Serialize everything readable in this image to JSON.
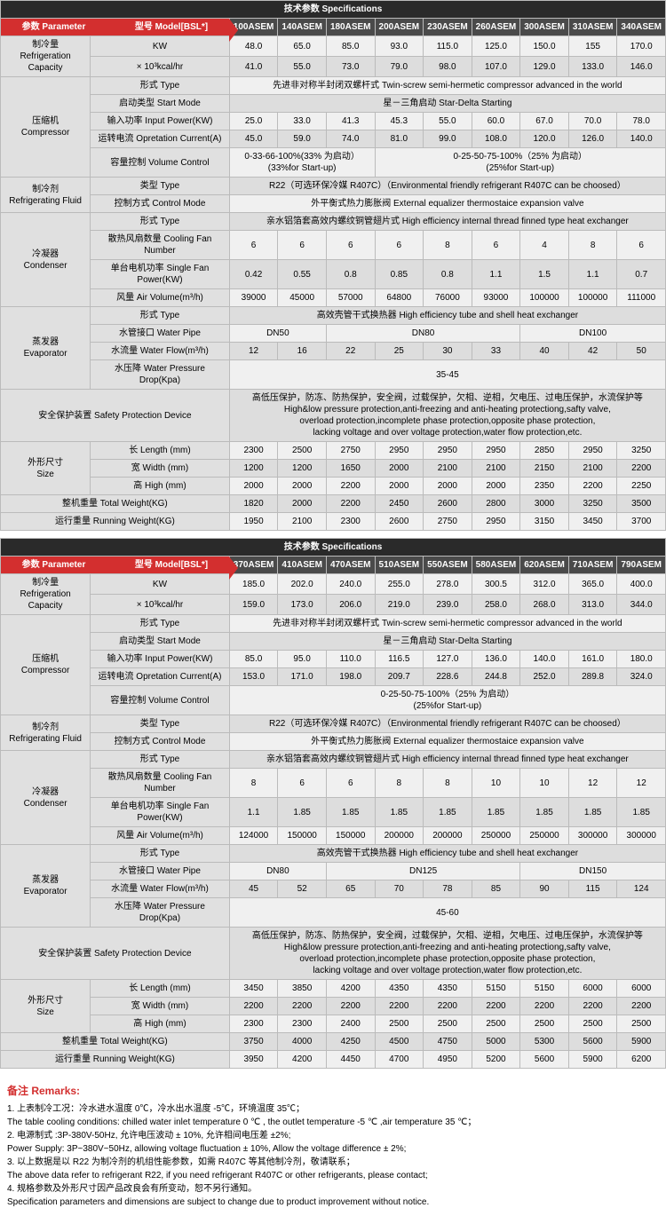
{
  "table1": {
    "title": "技术参数 Specifications",
    "paramLabel": "参数 Parameter",
    "modelLabel": "型号 Model[BSL*]",
    "models": [
      "100ASEM",
      "140ASEM",
      "180ASEM",
      "200ASEM",
      "230ASEM",
      "260ASEM",
      "300ASEM",
      "310ASEM",
      "340ASEM"
    ],
    "refrigCap": {
      "label": "制冷量\nRefrigeration Capacity",
      "kw": "KW",
      "kwv": [
        "48.0",
        "65.0",
        "85.0",
        "93.0",
        "115.0",
        "125.0",
        "150.0",
        "155",
        "170.0"
      ],
      "kcal": "× 10³kcal/hr",
      "kcalv": [
        "41.0",
        "55.0",
        "73.0",
        "79.0",
        "98.0",
        "107.0",
        "129.0",
        "133.0",
        "146.0"
      ]
    },
    "compressor": {
      "label": "压缩机\nCompressor",
      "typeL": "形式 Type",
      "typeV": "先进非对称半封闭双螺杆式 Twin-screw semi-hermetic compressor advanced in the world",
      "startL": "启动类型 Start Mode",
      "startV": "星－三角启动 Star-Delta Starting",
      "inputL": "输入功率 Input Power(KW)",
      "inputV": [
        "25.0",
        "33.0",
        "41.3",
        "45.3",
        "55.0",
        "60.0",
        "67.0",
        "70.0",
        "78.0"
      ],
      "currL": "运转电流 Opretation Current(A)",
      "currV": [
        "45.0",
        "59.0",
        "74.0",
        "81.0",
        "99.0",
        "108.0",
        "120.0",
        "126.0",
        "140.0"
      ],
      "volL": "容量控制 Volume Control",
      "vol1": "0-33-66-100%(33% 为启动）\n(33%for Start-up)",
      "vol2": "0-25-50-75-100%（25% 为启动）\n(25%for Start-up)"
    },
    "refrigFluid": {
      "label": "制冷剂\nRefrigerating Fluid",
      "typeL": "类型 Type",
      "typeV": "R22（可选环保冷媒 R407C）（Environmental friendly refrigerant R407C can be choosed）",
      "ctrlL": "控制方式 Control Mode",
      "ctrlV": "外平衡式热力膨胀阀 External equalizer thermostaice expansion valve"
    },
    "condenser": {
      "label": "冷凝器\nCondenser",
      "typeL": "形式 Type",
      "typeV": "亲水铝箔套高效内螺纹铜管翅片式 High efficiency internal thread finned type heat exchanger",
      "fanNumL": "散热风扇数量 Cooling Fan Number",
      "fanNumV": [
        "6",
        "6",
        "6",
        "6",
        "8",
        "6",
        "4",
        "8",
        "6"
      ],
      "fanPwrL": "单台电机功率 Single Fan Power(KW)",
      "fanPwrV": [
        "0.42",
        "0.55",
        "0.8",
        "0.85",
        "0.8",
        "1.1",
        "1.5",
        "1.1",
        "0.7"
      ],
      "airL": "风量 Air Volume(m³/h)",
      "airV": [
        "39000",
        "45000",
        "57000",
        "64800",
        "76000",
        "93000",
        "100000",
        "100000",
        "111000"
      ]
    },
    "evaporator": {
      "label": "蒸发器\nEvaporator",
      "typeL": "形式 Type",
      "typeV": "高效壳管干式换热器 High efficiency tube and shell heat exchanger",
      "pipeL": "水管接口 Water Pipe",
      "pipe1": "DN50",
      "pipe2": "DN80",
      "pipe3": "DN100",
      "flowL": "水流量 Water Flow(m³/h)",
      "flowV": [
        "12",
        "16",
        "22",
        "25",
        "30",
        "33",
        "40",
        "42",
        "50"
      ],
      "dropL": "水压降 Water Pressure Drop(Kpa)",
      "dropV": "35-45"
    },
    "safety": {
      "label": "安全保护装置 Safety Protection Device",
      "value": "高低压保护，防冻、防热保护，安全阀，过载保护，欠相、逆相，欠电压、过电压保护，水流保护等\nHigh&low pressure protection,anti-freezing and anti-heating protectiong,safty valve,\noverload protection,incomplete phase protection,opposite phase protection,\nlacking voltage and over voltage protection,water flow protection,etc."
    },
    "size": {
      "label": "外形尺寸\nSize",
      "lenL": "长 Length (mm)",
      "lenV": [
        "2300",
        "2500",
        "2750",
        "2950",
        "2950",
        "2950",
        "2850",
        "2950",
        "3250"
      ],
      "widL": "宽 Width (mm)",
      "widV": [
        "1200",
        "1200",
        "1650",
        "2000",
        "2100",
        "2100",
        "2150",
        "2100",
        "2200"
      ],
      "hiL": "高 High (mm)",
      "hiV": [
        "2000",
        "2000",
        "2200",
        "2000",
        "2000",
        "2000",
        "2350",
        "2200",
        "2250"
      ]
    },
    "totWt": {
      "label": "整机重量 Total Weight(KG)",
      "v": [
        "1820",
        "2000",
        "2200",
        "2450",
        "2600",
        "2800",
        "3000",
        "3250",
        "3500"
      ]
    },
    "runWt": {
      "label": "运行重量 Running Weight(KG)",
      "v": [
        "1950",
        "2100",
        "2300",
        "2600",
        "2750",
        "2950",
        "3150",
        "3450",
        "3700"
      ]
    }
  },
  "table2": {
    "title": "技术参数 Specifications",
    "paramLabel": "参数 Parameter",
    "modelLabel": "型号 Model[BSL*]",
    "models": [
      "370ASEM",
      "410ASEM",
      "470ASEM",
      "510ASEM",
      "550ASEM",
      "580ASEM",
      "620ASEM",
      "710ASEM",
      "790ASEM"
    ],
    "refrigCap": {
      "label": "制冷量\nRefrigeration Capacity",
      "kw": "KW",
      "kwv": [
        "185.0",
        "202.0",
        "240.0",
        "255.0",
        "278.0",
        "300.5",
        "312.0",
        "365.0",
        "400.0"
      ],
      "kcal": "× 10³kcal/hr",
      "kcalv": [
        "159.0",
        "173.0",
        "206.0",
        "219.0",
        "239.0",
        "258.0",
        "268.0",
        "313.0",
        "344.0"
      ]
    },
    "compressor": {
      "label": "压缩机\nCompressor",
      "typeL": "形式 Type",
      "typeV": "先进非对称半封闭双螺杆式 Twin-screw semi-hermetic compressor advanced in the world",
      "startL": "启动类型 Start Mode",
      "startV": "星－三角启动 Star-Delta Starting",
      "inputL": "输入功率 Input Power(KW)",
      "inputV": [
        "85.0",
        "95.0",
        "110.0",
        "116.5",
        "127.0",
        "136.0",
        "140.0",
        "161.0",
        "180.0"
      ],
      "currL": "运转电流 Opretation Current(A)",
      "currV": [
        "153.0",
        "171.0",
        "198.0",
        "209.7",
        "228.6",
        "244.8",
        "252.0",
        "289.8",
        "324.0"
      ],
      "volL": "容量控制 Volume Control",
      "volV": "0-25-50-75-100%（25% 为启动）\n(25%for Start-up)"
    },
    "refrigFluid": {
      "label": "制冷剂\nRefrigerating Fluid",
      "typeL": "类型 Type",
      "typeV": "R22（可选环保冷媒 R407C）（Environmental friendly refrigerant R407C can be choosed）",
      "ctrlL": "控制方式 Control Mode",
      "ctrlV": "外平衡式热力膨胀阀 External equalizer thermostaice expansion valve"
    },
    "condenser": {
      "label": "冷凝器\nCondenser",
      "typeL": "形式 Type",
      "typeV": "亲水铝箔套高效内螺纹铜管翅片式 High efficiency internal thread finned type heat exchanger",
      "fanNumL": "散热风扇数量 Cooling Fan Number",
      "fanNumV": [
        "8",
        "6",
        "6",
        "8",
        "8",
        "10",
        "10",
        "12",
        "12"
      ],
      "fanPwrL": "单台电机功率 Single Fan Power(KW)",
      "fanPwrV": [
        "1.1",
        "1.85",
        "1.85",
        "1.85",
        "1.85",
        "1.85",
        "1.85",
        "1.85",
        "1.85"
      ],
      "airL": "风量 Air Volume(m³/h)",
      "airV": [
        "124000",
        "150000",
        "150000",
        "200000",
        "200000",
        "250000",
        "250000",
        "300000",
        "300000"
      ]
    },
    "evaporator": {
      "label": "蒸发器\nEvaporator",
      "typeL": "形式 Type",
      "typeV": "高效壳管干式换热器 High efficiency tube and shell heat exchanger",
      "pipeL": "水管接口 Water Pipe",
      "pipe1": "DN80",
      "pipe2": "DN125",
      "pipe3": "DN150",
      "flowL": "水流量 Water Flow(m³/h)",
      "flowV": [
        "45",
        "52",
        "65",
        "70",
        "78",
        "85",
        "90",
        "115",
        "124"
      ],
      "dropL": "水压降 Water Pressure Drop(Kpa)",
      "dropV": "45-60"
    },
    "safety": {
      "label": "安全保护装置 Safety Protection Device",
      "value": "高低压保护，防冻、防热保护，安全阀，过载保护，欠相、逆相，欠电压、过电压保护，水流保护等\nHigh&low pressure protection,anti-freezing and anti-heating protectiong,safty valve,\noverload protection,incomplete phase protection,opposite phase protection,\nlacking voltage and over voltage protection,water flow protection,etc."
    },
    "size": {
      "label": "外形尺寸\nSize",
      "lenL": "长 Length (mm)",
      "lenV": [
        "3450",
        "3850",
        "4200",
        "4350",
        "4350",
        "5150",
        "5150",
        "6000",
        "6000"
      ],
      "widL": "宽 Width (mm)",
      "widV": [
        "2200",
        "2200",
        "2200",
        "2200",
        "2200",
        "2200",
        "2200",
        "2200",
        "2200"
      ],
      "hiL": "高 High (mm)",
      "hiV": [
        "2300",
        "2300",
        "2400",
        "2500",
        "2500",
        "2500",
        "2500",
        "2500",
        "2500"
      ]
    },
    "totWt": {
      "label": "整机重量 Total Weight(KG)",
      "v": [
        "3750",
        "4000",
        "4250",
        "4500",
        "4750",
        "5000",
        "5300",
        "5600",
        "5900"
      ]
    },
    "runWt": {
      "label": "运行重量 Running Weight(KG)",
      "v": [
        "3950",
        "4200",
        "4450",
        "4700",
        "4950",
        "5200",
        "5600",
        "5900",
        "6200"
      ]
    }
  },
  "remarks": {
    "title": "备注 Remarks:",
    "lines": [
      "1. 上表制冷工况：冷水进水温度 0℃，冷水出水温度 -5℃，环境温度 35℃；",
      "The table cooling conditions: chilled water inlet temperature 0 ℃ , the outlet temperature -5 ℃ ,air temperature 35 ℃；",
      "2. 电源制式 :3P-380V-50Hz, 允许电压波动 ± 10%, 允许相间电压差 ±2%;",
      "Power Supply: 3P~380V~50Hz, allowing voltage fluctuation ± 10%, Allow the voltage difference ± 2%;",
      "3. 以上数据是以 R22 为制冷剂的机组性能参数，如需 R407C 等其他制冷剂，敬请联系；",
      "The above data refer to refrigerant R22, if you need refrigerant R407C or other refrigerants, please contact;",
      "4. 规格参数及外形尺寸因产品改良会有所变动，恕不另行通知。",
      "Specification parameters and dimensions are subject to change due to product improvement without notice."
    ]
  }
}
